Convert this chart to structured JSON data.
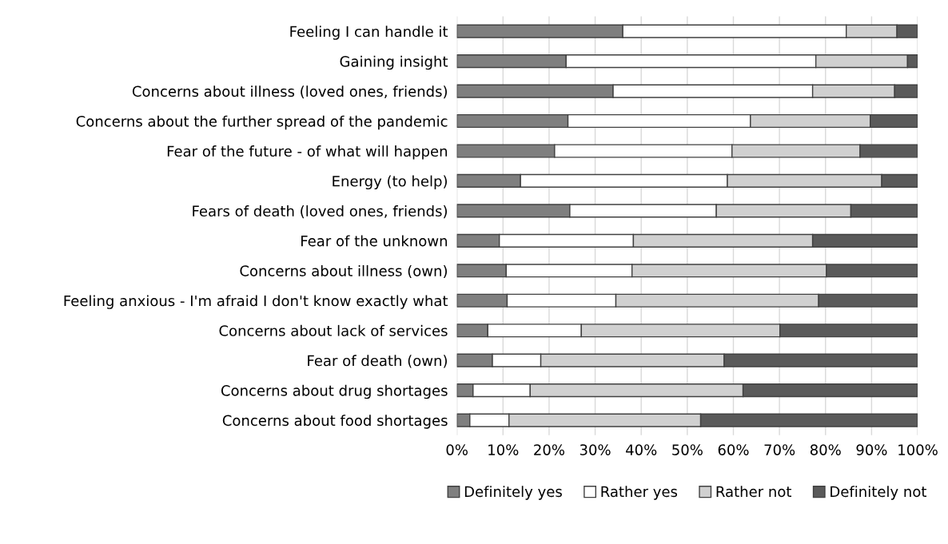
{
  "chart_data": {
    "type": "bar",
    "orientation": "horizontal",
    "stacked": true,
    "categories": [
      "Feeling I can handle it",
      "Gaining insight",
      "Concerns about illness (loved ones, friends)",
      "Concerns about the further spread of the pandemic",
      "Fear of the future - of what will happen",
      "Energy (to help)",
      "Fears of death (loved ones, friends)",
      "Fear of the unknown",
      "Concerns about illness (own)",
      "Feeling anxious - I'm afraid I don't know exactly what",
      "Concerns about lack of services",
      "Fear of death (own)",
      "Concerns about drug shortages",
      "Concerns about food shortages"
    ],
    "series": [
      {
        "name": "Definitely yes",
        "color": "#7f7f7f",
        "values": [
          36,
          23.7,
          33.9,
          24.1,
          21.2,
          13.8,
          24.5,
          9.2,
          10.7,
          10.9,
          6.7,
          7.7,
          3.5,
          2.8
        ]
      },
      {
        "name": "Rather yes",
        "color": "#ffffff",
        "values": [
          48.5,
          54.2,
          43.3,
          39.6,
          38.5,
          44.9,
          31.8,
          29.1,
          27.3,
          23.6,
          20.3,
          10.5,
          12.4,
          8.5
        ]
      },
      {
        "name": "Rather not",
        "color": "#d0d0d0",
        "values": [
          11,
          19.9,
          17.8,
          26,
          27.8,
          33.5,
          29.2,
          38.9,
          42.2,
          44,
          43.1,
          39.8,
          46.2,
          41.6
        ]
      },
      {
        "name": "Definitely not",
        "color": "#5a5a5a",
        "values": [
          4.5,
          2.2,
          5,
          10.3,
          12.5,
          7.8,
          14.5,
          22.8,
          19.8,
          21.5,
          29.9,
          42,
          37.9,
          47.1
        ]
      }
    ],
    "xlim": [
      0,
      100
    ],
    "xticks": [
      {
        "value": 0,
        "label": "0%"
      },
      {
        "value": 10,
        "label": "10%"
      },
      {
        "value": 20,
        "label": "20%"
      },
      {
        "value": 30,
        "label": "30%"
      },
      {
        "value": 40,
        "label": "40%"
      },
      {
        "value": 50,
        "label": "50%"
      },
      {
        "value": 60,
        "label": "60%"
      },
      {
        "value": 70,
        "label": "70%"
      },
      {
        "value": 80,
        "label": "80%"
      },
      {
        "value": 90,
        "label": "90%"
      },
      {
        "value": 100,
        "label": "100%"
      }
    ],
    "grid": "x",
    "legend": "bottom"
  }
}
